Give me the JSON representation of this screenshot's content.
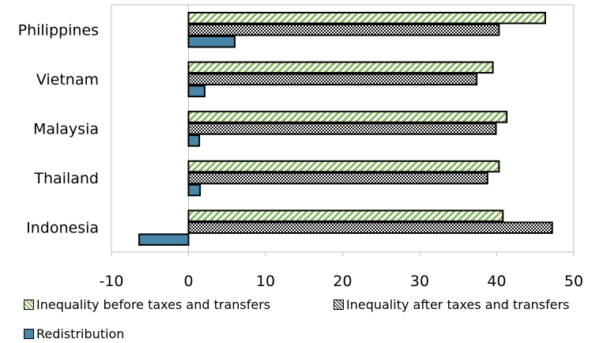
{
  "chart_data": {
    "type": "bar",
    "orientation": "horizontal",
    "categories": [
      "Philippines",
      "Vietnam",
      "Malaysia",
      "Thailand",
      "Indonesia"
    ],
    "series": [
      {
        "name": "Inequality before taxes and transfers",
        "values": [
          46.3,
          39.5,
          41.3,
          40.3,
          40.8
        ],
        "fill": "hatch-diagonal",
        "color": "#8db86b"
      },
      {
        "name": "Inequality after taxes and transfers",
        "values": [
          40.3,
          37.4,
          39.9,
          38.8,
          47.2
        ],
        "fill": "dotted",
        "color": "#000000"
      },
      {
        "name": "Redistribution",
        "values": [
          6.0,
          2.1,
          1.4,
          1.5,
          -6.4
        ],
        "fill": "solid",
        "color": "#4a86a8"
      }
    ],
    "x_ticks": [
      "-10",
      "0",
      "10",
      "20",
      "30",
      "40",
      "50"
    ],
    "xlim": [
      -10,
      50
    ],
    "grid": false,
    "legend_position": "bottom"
  }
}
